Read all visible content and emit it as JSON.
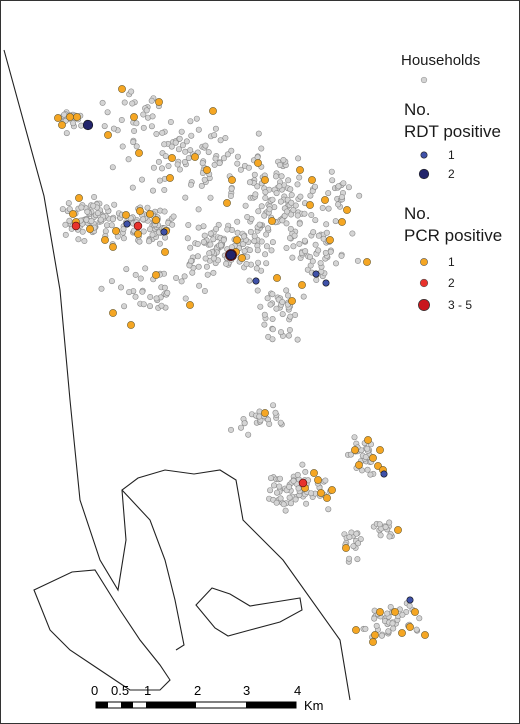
{
  "legend": {
    "households_title": "Households",
    "rdt_title_line1": "No.",
    "rdt_title_line2": "RDT positive",
    "rdt_items": [
      "1",
      "2"
    ],
    "pcr_title_line1": "No.",
    "pcr_title_line2": "PCR positive",
    "pcr_items": [
      "1",
      "2",
      "3 - 5"
    ]
  },
  "scale_bar": {
    "labels": [
      "0",
      "0.5",
      "1",
      "2",
      "3",
      "4"
    ],
    "unit": "Km"
  },
  "colors": {
    "household": "#d4d4d4",
    "pcr_1": "#f5a623",
    "pcr_2": "#e8322c",
    "pcr_3_5": "#c8161d",
    "rdt_1": "#3f51a8",
    "rdt_2": "#22246b",
    "outline": "#222222"
  }
}
